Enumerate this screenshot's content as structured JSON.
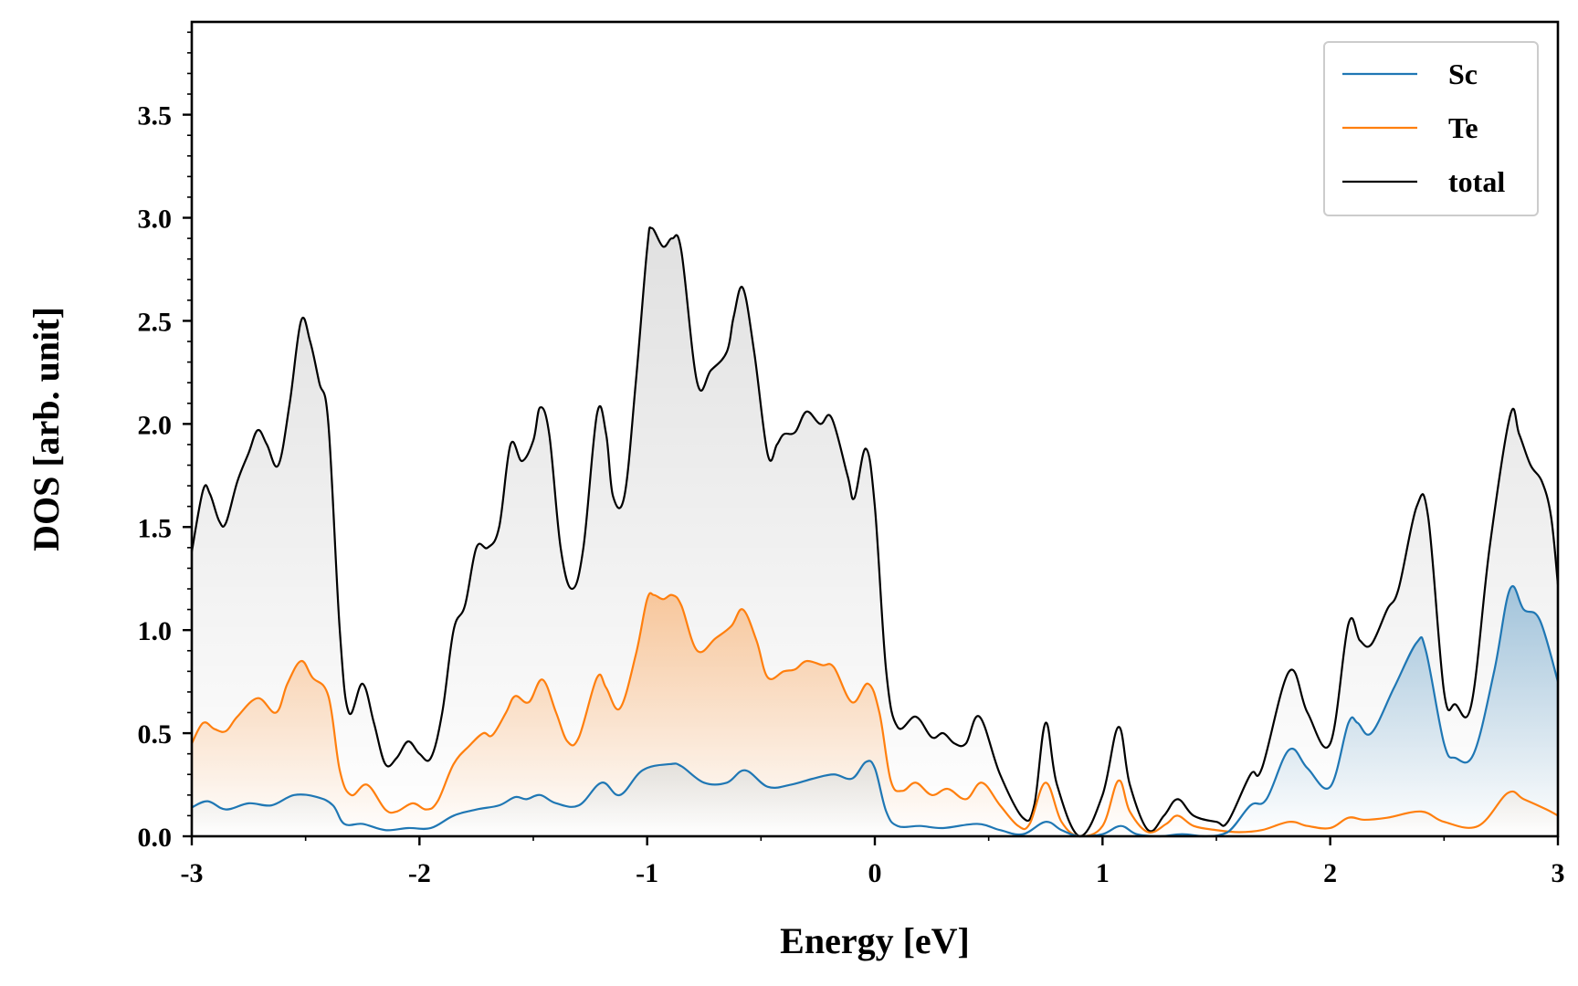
{
  "chart_data": {
    "type": "line",
    "title": "",
    "xlabel": "Energy [eV]",
    "ylabel": "DOS [arb. unit]",
    "xlim": [
      -3,
      3
    ],
    "ylim": [
      0,
      3.95
    ],
    "xticks": [
      -3,
      -2,
      -1,
      0,
      1,
      2,
      3
    ],
    "xtick_labels": [
      "-3",
      "-2",
      "-1",
      "0",
      "1",
      "2",
      "3"
    ],
    "yticks": [
      0,
      0.5,
      1,
      1.5,
      2,
      2.5,
      3,
      3.5
    ],
    "ytick_labels": [
      "0.0",
      "0.5",
      "1.0",
      "1.5",
      "2.0",
      "2.5",
      "3.0",
      "3.5"
    ],
    "grid": false,
    "legend_position": "top-right",
    "series": [
      {
        "name": "Sc",
        "color": "#1f77b4",
        "fill": "gradient",
        "points": [
          [
            -3.0,
            0.14
          ],
          [
            -2.93,
            0.17
          ],
          [
            -2.85,
            0.13
          ],
          [
            -2.75,
            0.16
          ],
          [
            -2.65,
            0.15
          ],
          [
            -2.55,
            0.2
          ],
          [
            -2.45,
            0.19
          ],
          [
            -2.38,
            0.15
          ],
          [
            -2.33,
            0.06
          ],
          [
            -2.25,
            0.06
          ],
          [
            -2.15,
            0.03
          ],
          [
            -2.05,
            0.04
          ],
          [
            -1.95,
            0.04
          ],
          [
            -1.85,
            0.1
          ],
          [
            -1.75,
            0.13
          ],
          [
            -1.65,
            0.15
          ],
          [
            -1.58,
            0.19
          ],
          [
            -1.53,
            0.18
          ],
          [
            -1.47,
            0.2
          ],
          [
            -1.4,
            0.16
          ],
          [
            -1.3,
            0.15
          ],
          [
            -1.2,
            0.26
          ],
          [
            -1.12,
            0.2
          ],
          [
            -1.02,
            0.32
          ],
          [
            -0.9,
            0.35
          ],
          [
            -0.85,
            0.34
          ],
          [
            -0.75,
            0.26
          ],
          [
            -0.65,
            0.26
          ],
          [
            -0.57,
            0.32
          ],
          [
            -0.47,
            0.24
          ],
          [
            -0.37,
            0.25
          ],
          [
            -0.27,
            0.28
          ],
          [
            -0.18,
            0.3
          ],
          [
            -0.1,
            0.28
          ],
          [
            -0.04,
            0.36
          ],
          [
            0.0,
            0.33
          ],
          [
            0.05,
            0.12
          ],
          [
            0.1,
            0.05
          ],
          [
            0.2,
            0.05
          ],
          [
            0.3,
            0.04
          ],
          [
            0.45,
            0.06
          ],
          [
            0.55,
            0.03
          ],
          [
            0.65,
            0.01
          ],
          [
            0.75,
            0.07
          ],
          [
            0.82,
            0.03
          ],
          [
            0.9,
            0.0
          ],
          [
            1.0,
            0.01
          ],
          [
            1.08,
            0.05
          ],
          [
            1.15,
            0.01
          ],
          [
            1.25,
            0.0
          ],
          [
            1.35,
            0.01
          ],
          [
            1.45,
            0.0
          ],
          [
            1.55,
            0.02
          ],
          [
            1.65,
            0.15
          ],
          [
            1.72,
            0.18
          ],
          [
            1.82,
            0.42
          ],
          [
            1.9,
            0.33
          ],
          [
            2.0,
            0.24
          ],
          [
            2.08,
            0.55
          ],
          [
            2.12,
            0.55
          ],
          [
            2.18,
            0.5
          ],
          [
            2.28,
            0.72
          ],
          [
            2.38,
            0.94
          ],
          [
            2.42,
            0.9
          ],
          [
            2.5,
            0.45
          ],
          [
            2.55,
            0.38
          ],
          [
            2.63,
            0.4
          ],
          [
            2.72,
            0.8
          ],
          [
            2.79,
            1.2
          ],
          [
            2.85,
            1.1
          ],
          [
            2.92,
            1.05
          ],
          [
            3.0,
            0.75
          ]
        ]
      },
      {
        "name": "Te",
        "color": "#ff7f0e",
        "fill": "gradient",
        "points": [
          [
            -3.0,
            0.45
          ],
          [
            -2.95,
            0.55
          ],
          [
            -2.9,
            0.52
          ],
          [
            -2.85,
            0.51
          ],
          [
            -2.8,
            0.58
          ],
          [
            -2.71,
            0.67
          ],
          [
            -2.63,
            0.6
          ],
          [
            -2.58,
            0.74
          ],
          [
            -2.52,
            0.85
          ],
          [
            -2.47,
            0.77
          ],
          [
            -2.4,
            0.68
          ],
          [
            -2.35,
            0.32
          ],
          [
            -2.3,
            0.2
          ],
          [
            -2.23,
            0.25
          ],
          [
            -2.15,
            0.13
          ],
          [
            -2.1,
            0.12
          ],
          [
            -2.03,
            0.16
          ],
          [
            -1.97,
            0.13
          ],
          [
            -1.92,
            0.17
          ],
          [
            -1.85,
            0.35
          ],
          [
            -1.78,
            0.44
          ],
          [
            -1.72,
            0.5
          ],
          [
            -1.68,
            0.49
          ],
          [
            -1.62,
            0.6
          ],
          [
            -1.58,
            0.68
          ],
          [
            -1.52,
            0.65
          ],
          [
            -1.46,
            0.76
          ],
          [
            -1.4,
            0.6
          ],
          [
            -1.35,
            0.46
          ],
          [
            -1.3,
            0.48
          ],
          [
            -1.22,
            0.77
          ],
          [
            -1.18,
            0.72
          ],
          [
            -1.12,
            0.62
          ],
          [
            -1.05,
            0.88
          ],
          [
            -1.0,
            1.15
          ],
          [
            -0.97,
            1.17
          ],
          [
            -0.93,
            1.15
          ],
          [
            -0.89,
            1.17
          ],
          [
            -0.85,
            1.12
          ],
          [
            -0.78,
            0.9
          ],
          [
            -0.7,
            0.96
          ],
          [
            -0.63,
            1.02
          ],
          [
            -0.58,
            1.1
          ],
          [
            -0.52,
            0.95
          ],
          [
            -0.47,
            0.77
          ],
          [
            -0.4,
            0.8
          ],
          [
            -0.35,
            0.81
          ],
          [
            -0.3,
            0.85
          ],
          [
            -0.23,
            0.83
          ],
          [
            -0.18,
            0.82
          ],
          [
            -0.1,
            0.65
          ],
          [
            -0.03,
            0.74
          ],
          [
            0.02,
            0.6
          ],
          [
            0.07,
            0.27
          ],
          [
            0.12,
            0.22
          ],
          [
            0.18,
            0.26
          ],
          [
            0.25,
            0.2
          ],
          [
            0.32,
            0.23
          ],
          [
            0.4,
            0.18
          ],
          [
            0.47,
            0.26
          ],
          [
            0.55,
            0.15
          ],
          [
            0.63,
            0.05
          ],
          [
            0.68,
            0.06
          ],
          [
            0.75,
            0.26
          ],
          [
            0.82,
            0.07
          ],
          [
            0.9,
            0.0
          ],
          [
            1.0,
            0.05
          ],
          [
            1.07,
            0.27
          ],
          [
            1.12,
            0.12
          ],
          [
            1.2,
            0.02
          ],
          [
            1.28,
            0.06
          ],
          [
            1.33,
            0.1
          ],
          [
            1.4,
            0.05
          ],
          [
            1.5,
            0.03
          ],
          [
            1.6,
            0.02
          ],
          [
            1.7,
            0.03
          ],
          [
            1.82,
            0.07
          ],
          [
            1.9,
            0.05
          ],
          [
            2.0,
            0.04
          ],
          [
            2.08,
            0.09
          ],
          [
            2.15,
            0.08
          ],
          [
            2.25,
            0.09
          ],
          [
            2.4,
            0.12
          ],
          [
            2.5,
            0.07
          ],
          [
            2.65,
            0.05
          ],
          [
            2.78,
            0.21
          ],
          [
            2.85,
            0.18
          ],
          [
            2.95,
            0.13
          ],
          [
            3.0,
            0.1
          ]
        ]
      },
      {
        "name": "total",
        "color": "#000000",
        "fill": "gradient",
        "points": [
          [
            -3.0,
            1.38
          ],
          [
            -2.95,
            1.68
          ],
          [
            -2.92,
            1.66
          ],
          [
            -2.88,
            1.53
          ],
          [
            -2.85,
            1.52
          ],
          [
            -2.8,
            1.72
          ],
          [
            -2.75,
            1.86
          ],
          [
            -2.71,
            1.97
          ],
          [
            -2.67,
            1.9
          ],
          [
            -2.62,
            1.8
          ],
          [
            -2.57,
            2.1
          ],
          [
            -2.52,
            2.5
          ],
          [
            -2.48,
            2.4
          ],
          [
            -2.44,
            2.2
          ],
          [
            -2.4,
            2.0
          ],
          [
            -2.35,
            1.0
          ],
          [
            -2.31,
            0.6
          ],
          [
            -2.25,
            0.74
          ],
          [
            -2.2,
            0.55
          ],
          [
            -2.15,
            0.35
          ],
          [
            -2.1,
            0.38
          ],
          [
            -2.05,
            0.46
          ],
          [
            -2.0,
            0.4
          ],
          [
            -1.95,
            0.38
          ],
          [
            -1.9,
            0.6
          ],
          [
            -1.85,
            1.0
          ],
          [
            -1.8,
            1.12
          ],
          [
            -1.75,
            1.4
          ],
          [
            -1.7,
            1.4
          ],
          [
            -1.65,
            1.5
          ],
          [
            -1.6,
            1.9
          ],
          [
            -1.55,
            1.82
          ],
          [
            -1.5,
            1.92
          ],
          [
            -1.47,
            2.08
          ],
          [
            -1.43,
            1.95
          ],
          [
            -1.38,
            1.4
          ],
          [
            -1.33,
            1.2
          ],
          [
            -1.28,
            1.4
          ],
          [
            -1.22,
            2.05
          ],
          [
            -1.18,
            1.95
          ],
          [
            -1.15,
            1.65
          ],
          [
            -1.1,
            1.65
          ],
          [
            -1.05,
            2.2
          ],
          [
            -1.0,
            2.85
          ],
          [
            -0.98,
            2.95
          ],
          [
            -0.93,
            2.86
          ],
          [
            -0.89,
            2.9
          ],
          [
            -0.85,
            2.84
          ],
          [
            -0.78,
            2.2
          ],
          [
            -0.72,
            2.26
          ],
          [
            -0.65,
            2.35
          ],
          [
            -0.62,
            2.52
          ],
          [
            -0.58,
            2.66
          ],
          [
            -0.53,
            2.35
          ],
          [
            -0.47,
            1.85
          ],
          [
            -0.43,
            1.9
          ],
          [
            -0.4,
            1.95
          ],
          [
            -0.35,
            1.96
          ],
          [
            -0.3,
            2.06
          ],
          [
            -0.24,
            2.0
          ],
          [
            -0.19,
            2.03
          ],
          [
            -0.12,
            1.75
          ],
          [
            -0.09,
            1.64
          ],
          [
            -0.04,
            1.88
          ],
          [
            0.0,
            1.6
          ],
          [
            0.05,
            0.8
          ],
          [
            0.1,
            0.53
          ],
          [
            0.18,
            0.58
          ],
          [
            0.25,
            0.48
          ],
          [
            0.3,
            0.5
          ],
          [
            0.35,
            0.45
          ],
          [
            0.4,
            0.45
          ],
          [
            0.46,
            0.58
          ],
          [
            0.55,
            0.3
          ],
          [
            0.65,
            0.09
          ],
          [
            0.7,
            0.15
          ],
          [
            0.75,
            0.55
          ],
          [
            0.8,
            0.25
          ],
          [
            0.9,
            0.0
          ],
          [
            1.0,
            0.2
          ],
          [
            1.07,
            0.53
          ],
          [
            1.12,
            0.25
          ],
          [
            1.2,
            0.03
          ],
          [
            1.27,
            0.1
          ],
          [
            1.33,
            0.18
          ],
          [
            1.4,
            0.1
          ],
          [
            1.5,
            0.07
          ],
          [
            1.55,
            0.07
          ],
          [
            1.65,
            0.3
          ],
          [
            1.7,
            0.33
          ],
          [
            1.82,
            0.8
          ],
          [
            1.9,
            0.6
          ],
          [
            2.0,
            0.45
          ],
          [
            2.08,
            1.03
          ],
          [
            2.13,
            0.95
          ],
          [
            2.18,
            0.93
          ],
          [
            2.25,
            1.1
          ],
          [
            2.3,
            1.2
          ],
          [
            2.38,
            1.6
          ],
          [
            2.43,
            1.55
          ],
          [
            2.5,
            0.7
          ],
          [
            2.55,
            0.64
          ],
          [
            2.62,
            0.64
          ],
          [
            2.7,
            1.4
          ],
          [
            2.79,
            2.04
          ],
          [
            2.83,
            1.95
          ],
          [
            2.88,
            1.8
          ],
          [
            2.93,
            1.72
          ],
          [
            2.97,
            1.55
          ],
          [
            3.0,
            1.22
          ]
        ]
      }
    ]
  }
}
